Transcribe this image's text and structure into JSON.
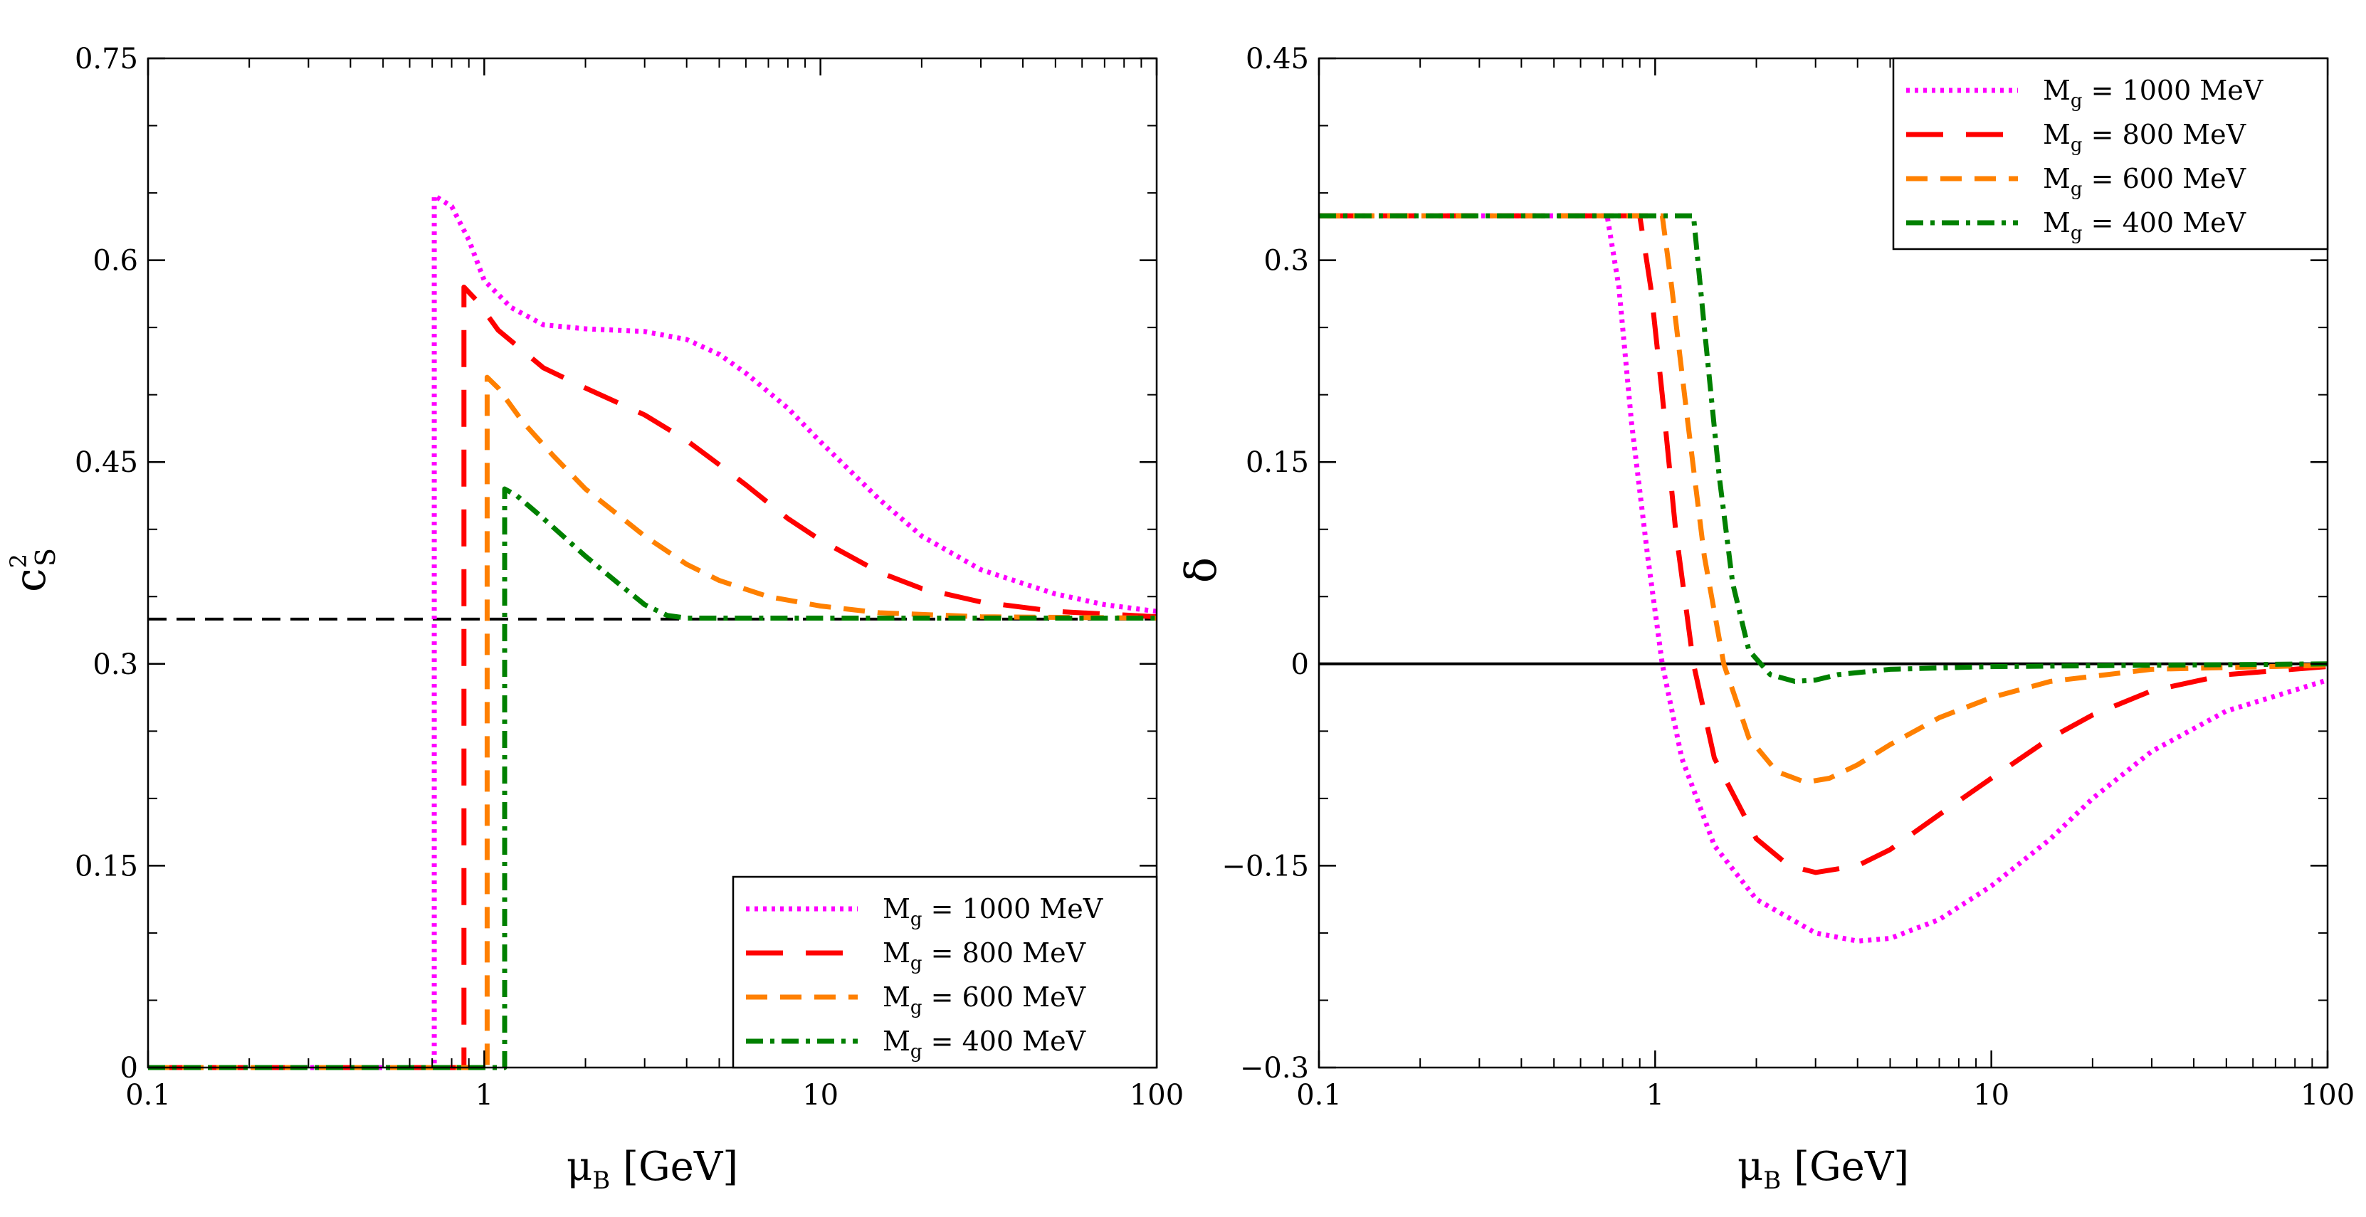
{
  "chart_data": [
    {
      "type": "line",
      "xscale": "log",
      "xlim": [
        0.1,
        100
      ],
      "ylim": [
        0,
        0.75
      ],
      "xticks": [
        "0.1",
        "1",
        "10",
        "100"
      ],
      "yticks": [
        "0",
        "0.15",
        "0.3",
        "0.45",
        "0.6",
        "0.75"
      ],
      "xlabel": {
        "main": "μ",
        "sub": "B",
        "unit": " [GeV]"
      },
      "ylabel": {
        "main": "c",
        "sup": "2",
        "sub": "S"
      },
      "legend_position": "bottom-right",
      "reference_line": {
        "y": 0.3333,
        "style": "dashed",
        "color": "#000000"
      },
      "series": [
        {
          "name": "M",
          "name_sub": "g",
          "name_rest": " = 1000 MeV",
          "color": "#ff00ff",
          "dash": "dotted",
          "points": [
            [
              0.1,
              0
            ],
            [
              0.69,
              0
            ],
            [
              0.71,
              0
            ],
            [
              0.71,
              0.648
            ],
            [
              0.8,
              0.64
            ],
            [
              0.9,
              0.615
            ],
            [
              1.0,
              0.585
            ],
            [
              1.2,
              0.565
            ],
            [
              1.5,
              0.552
            ],
            [
              2,
              0.549
            ],
            [
              3,
              0.547
            ],
            [
              4,
              0.541
            ],
            [
              5,
              0.53
            ],
            [
              6,
              0.516
            ],
            [
              8,
              0.49
            ],
            [
              10,
              0.465
            ],
            [
              15,
              0.422
            ],
            [
              20,
              0.395
            ],
            [
              30,
              0.37
            ],
            [
              50,
              0.352
            ],
            [
              70,
              0.344
            ],
            [
              100,
              0.339
            ]
          ]
        },
        {
          "name": "M",
          "name_sub": "g",
          "name_rest": " = 800 MeV",
          "color": "#ff0000",
          "dash": "long-dash",
          "points": [
            [
              0.1,
              0
            ],
            [
              0.85,
              0
            ],
            [
              0.87,
              0
            ],
            [
              0.87,
              0.58
            ],
            [
              0.95,
              0.57
            ],
            [
              1.1,
              0.548
            ],
            [
              1.5,
              0.52
            ],
            [
              2,
              0.505
            ],
            [
              3,
              0.485
            ],
            [
              4,
              0.466
            ],
            [
              5,
              0.448
            ],
            [
              6,
              0.433
            ],
            [
              8,
              0.408
            ],
            [
              10,
              0.392
            ],
            [
              15,
              0.368
            ],
            [
              20,
              0.356
            ],
            [
              30,
              0.346
            ],
            [
              50,
              0.339
            ],
            [
              100,
              0.335
            ]
          ]
        },
        {
          "name": "M",
          "name_sub": "g",
          "name_rest": " = 600 MeV",
          "color": "#ff8000",
          "dash": "dashed",
          "points": [
            [
              0.1,
              0
            ],
            [
              1.01,
              0
            ],
            [
              1.02,
              0
            ],
            [
              1.02,
              0.513
            ],
            [
              1.1,
              0.505
            ],
            [
              1.3,
              0.48
            ],
            [
              1.6,
              0.455
            ],
            [
              2,
              0.43
            ],
            [
              3,
              0.395
            ],
            [
              4,
              0.374
            ],
            [
              5,
              0.362
            ],
            [
              7,
              0.35
            ],
            [
              10,
              0.343
            ],
            [
              15,
              0.338
            ],
            [
              30,
              0.335
            ],
            [
              100,
              0.334
            ]
          ]
        },
        {
          "name": "M",
          "name_sub": "g",
          "name_rest": " = 400 MeV",
          "color": "#008000",
          "dash": "dash-dot",
          "points": [
            [
              0.1,
              0
            ],
            [
              1.14,
              0
            ],
            [
              1.15,
              0
            ],
            [
              1.15,
              0.43
            ],
            [
              1.25,
              0.425
            ],
            [
              1.5,
              0.408
            ],
            [
              2,
              0.38
            ],
            [
              2.5,
              0.36
            ],
            [
              3,
              0.344
            ],
            [
              3.5,
              0.336
            ],
            [
              4,
              0.334
            ],
            [
              10,
              0.334
            ],
            [
              100,
              0.334
            ]
          ]
        }
      ]
    },
    {
      "type": "line",
      "xscale": "log",
      "xlim": [
        0.1,
        100
      ],
      "ylim": [
        -0.3,
        0.45
      ],
      "xticks": [
        "0.1",
        "1",
        "10",
        "100"
      ],
      "yticks": [
        "−0.3",
        "−0.15",
        "0",
        "0.15",
        "0.3",
        "0.45"
      ],
      "xlabel": {
        "main": "μ",
        "sub": "B",
        "unit": " [GeV]"
      },
      "ylabel": {
        "main": "δ"
      },
      "legend_position": "top-right",
      "reference_line": {
        "y": 0,
        "style": "solid",
        "color": "#000000"
      },
      "series": [
        {
          "name": "M",
          "name_sub": "g",
          "name_rest": " = 1000 MeV",
          "color": "#ff00ff",
          "dash": "dotted",
          "points": [
            [
              0.1,
              0.333
            ],
            [
              0.72,
              0.333
            ],
            [
              0.78,
              0.28
            ],
            [
              0.85,
              0.18
            ],
            [
              0.95,
              0.08
            ],
            [
              1.05,
              0.0
            ],
            [
              1.2,
              -0.07
            ],
            [
              1.5,
              -0.135
            ],
            [
              2,
              -0.175
            ],
            [
              3,
              -0.2
            ],
            [
              4,
              -0.206
            ],
            [
              5,
              -0.204
            ],
            [
              7,
              -0.19
            ],
            [
              10,
              -0.165
            ],
            [
              15,
              -0.13
            ],
            [
              20,
              -0.1
            ],
            [
              30,
              -0.065
            ],
            [
              50,
              -0.035
            ],
            [
              100,
              -0.012
            ]
          ]
        },
        {
          "name": "M",
          "name_sub": "g",
          "name_rest": " = 800 MeV",
          "color": "#ff0000",
          "dash": "long-dash",
          "points": [
            [
              0.1,
              0.333
            ],
            [
              0.9,
              0.333
            ],
            [
              0.97,
              0.28
            ],
            [
              1.05,
              0.2
            ],
            [
              1.15,
              0.1
            ],
            [
              1.3,
              0.0
            ],
            [
              1.5,
              -0.07
            ],
            [
              2,
              -0.13
            ],
            [
              2.5,
              -0.15
            ],
            [
              3,
              -0.155
            ],
            [
              4,
              -0.15
            ],
            [
              5,
              -0.138
            ],
            [
              7,
              -0.112
            ],
            [
              10,
              -0.085
            ],
            [
              15,
              -0.055
            ],
            [
              20,
              -0.038
            ],
            [
              30,
              -0.02
            ],
            [
              50,
              -0.008
            ],
            [
              100,
              -0.002
            ]
          ]
        },
        {
          "name": "M",
          "name_sub": "g",
          "name_rest": " = 600 MeV",
          "color": "#ff8000",
          "dash": "dashed",
          "points": [
            [
              0.1,
              0.333
            ],
            [
              1.05,
              0.333
            ],
            [
              1.12,
              0.28
            ],
            [
              1.25,
              0.18
            ],
            [
              1.4,
              0.08
            ],
            [
              1.6,
              0.0
            ],
            [
              1.9,
              -0.055
            ],
            [
              2.3,
              -0.08
            ],
            [
              2.8,
              -0.088
            ],
            [
              3.3,
              -0.085
            ],
            [
              4,
              -0.075
            ],
            [
              5,
              -0.06
            ],
            [
              7,
              -0.04
            ],
            [
              10,
              -0.025
            ],
            [
              15,
              -0.013
            ],
            [
              30,
              -0.004
            ],
            [
              100,
              -0.001
            ]
          ]
        },
        {
          "name": "M",
          "name_sub": "g",
          "name_rest": " = 400 MeV",
          "color": "#008000",
          "dash": "dash-dot",
          "points": [
            [
              0.1,
              0.333
            ],
            [
              1.3,
              0.333
            ],
            [
              1.4,
              0.25
            ],
            [
              1.55,
              0.14
            ],
            [
              1.7,
              0.06
            ],
            [
              1.9,
              0.01
            ],
            [
              2.2,
              -0.008
            ],
            [
              2.6,
              -0.013
            ],
            [
              3.0,
              -0.012
            ],
            [
              3.5,
              -0.008
            ],
            [
              5,
              -0.004
            ],
            [
              10,
              -0.002
            ],
            [
              30,
              -0.001
            ],
            [
              100,
              0
            ]
          ]
        }
      ]
    }
  ]
}
